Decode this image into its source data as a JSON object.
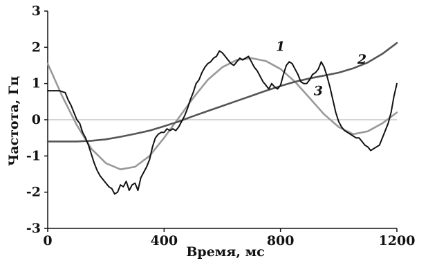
{
  "chart_data": {
    "type": "line",
    "xlabel": "Время, мс",
    "ylabel": "Частота, Гц",
    "xlim": [
      0,
      1200
    ],
    "ylim": [
      -3,
      3
    ],
    "x_ticks": [
      0,
      400,
      800,
      1200
    ],
    "x_tick_labels": [
      "0",
      "400",
      "800",
      "1200"
    ],
    "y_ticks": [
      -3,
      -2,
      -1,
      0,
      1,
      2,
      3
    ],
    "y_tick_labels": [
      "-3",
      "-2",
      "-1",
      "0",
      "1",
      "2",
      "3"
    ],
    "zero_line": true,
    "grid": false,
    "colors": {
      "series_1": "#111111",
      "series_2": "#555555",
      "series_3": "#999999",
      "axes": "#111111",
      "zero_line": "#aaaaaa"
    },
    "series": [
      {
        "name": "1",
        "label_at": [
          800,
          1.9
        ],
        "x": [
          0,
          20,
          40,
          60,
          70,
          80,
          90,
          100,
          110,
          120,
          130,
          140,
          150,
          160,
          170,
          180,
          190,
          200,
          210,
          220,
          230,
          240,
          250,
          260,
          270,
          280,
          290,
          300,
          310,
          320,
          330,
          340,
          350,
          360,
          370,
          380,
          390,
          400,
          410,
          420,
          430,
          440,
          450,
          460,
          470,
          480,
          490,
          500,
          510,
          520,
          530,
          540,
          550,
          560,
          570,
          580,
          590,
          600,
          610,
          620,
          630,
          640,
          650,
          660,
          670,
          680,
          690,
          700,
          710,
          720,
          730,
          740,
          750,
          760,
          770,
          780,
          790,
          800,
          810,
          820,
          830,
          840,
          850,
          860,
          870,
          880,
          890,
          900,
          910,
          920,
          930,
          940,
          950,
          960,
          970,
          980,
          990,
          1000,
          1010,
          1020,
          1030,
          1040,
          1050,
          1060,
          1070,
          1080,
          1090,
          1100,
          1110,
          1120,
          1130,
          1140,
          1150,
          1160,
          1170,
          1180,
          1190,
          1200
        ],
        "y": [
          0.8,
          0.8,
          0.8,
          0.75,
          0.55,
          0.4,
          0.2,
          0.0,
          -0.1,
          -0.35,
          -0.5,
          -0.7,
          -0.95,
          -1.2,
          -1.4,
          -1.55,
          -1.65,
          -1.75,
          -1.85,
          -1.9,
          -2.05,
          -2.0,
          -1.8,
          -1.85,
          -1.7,
          -1.95,
          -1.8,
          -1.75,
          -1.95,
          -1.6,
          -1.45,
          -1.3,
          -1.1,
          -0.75,
          -0.5,
          -0.4,
          -0.35,
          -0.35,
          -0.25,
          -0.3,
          -0.25,
          -0.3,
          -0.2,
          -0.05,
          0.1,
          0.3,
          0.55,
          0.75,
          1.0,
          1.1,
          1.3,
          1.45,
          1.55,
          1.6,
          1.7,
          1.75,
          1.9,
          1.85,
          1.75,
          1.65,
          1.55,
          1.5,
          1.6,
          1.7,
          1.65,
          1.7,
          1.75,
          1.6,
          1.45,
          1.35,
          1.2,
          1.05,
          0.95,
          0.85,
          1.0,
          0.9,
          0.85,
          0.95,
          1.25,
          1.5,
          1.6,
          1.55,
          1.4,
          1.25,
          1.05,
          1.0,
          1.0,
          1.1,
          1.25,
          1.3,
          1.4,
          1.6,
          1.45,
          1.2,
          0.9,
          0.55,
          0.2,
          -0.05,
          -0.2,
          -0.3,
          -0.35,
          -0.4,
          -0.45,
          -0.5,
          -0.5,
          -0.6,
          -0.7,
          -0.75,
          -0.85,
          -0.8,
          -0.75,
          -0.7,
          -0.5,
          -0.3,
          -0.1,
          0.2,
          0.65,
          1.0
        ]
      },
      {
        "name": "2",
        "label_at": [
          1080,
          1.55
        ],
        "x": [
          0,
          50,
          100,
          150,
          200,
          250,
          300,
          350,
          400,
          450,
          500,
          550,
          600,
          650,
          700,
          750,
          800,
          850,
          900,
          950,
          1000,
          1050,
          1100,
          1150,
          1200
        ],
        "y": [
          -0.6,
          -0.6,
          -0.6,
          -0.58,
          -0.54,
          -0.47,
          -0.39,
          -0.3,
          -0.18,
          -0.05,
          0.1,
          0.24,
          0.38,
          0.52,
          0.66,
          0.8,
          0.93,
          1.05,
          1.14,
          1.22,
          1.3,
          1.42,
          1.58,
          1.82,
          2.12
        ]
      },
      {
        "name": "3",
        "label_at": [
          930,
          0.68
        ],
        "x": [
          0,
          50,
          100,
          150,
          200,
          250,
          300,
          350,
          400,
          450,
          500,
          550,
          600,
          650,
          700,
          750,
          800,
          850,
          900,
          950,
          1000,
          1050,
          1100,
          1150,
          1200
        ],
        "y": [
          1.55,
          0.65,
          -0.15,
          -0.8,
          -1.2,
          -1.37,
          -1.3,
          -1.0,
          -0.5,
          0.05,
          0.6,
          1.1,
          1.45,
          1.65,
          1.7,
          1.62,
          1.4,
          1.05,
          0.6,
          0.15,
          -0.2,
          -0.4,
          -0.32,
          -0.1,
          0.2
        ]
      }
    ]
  }
}
